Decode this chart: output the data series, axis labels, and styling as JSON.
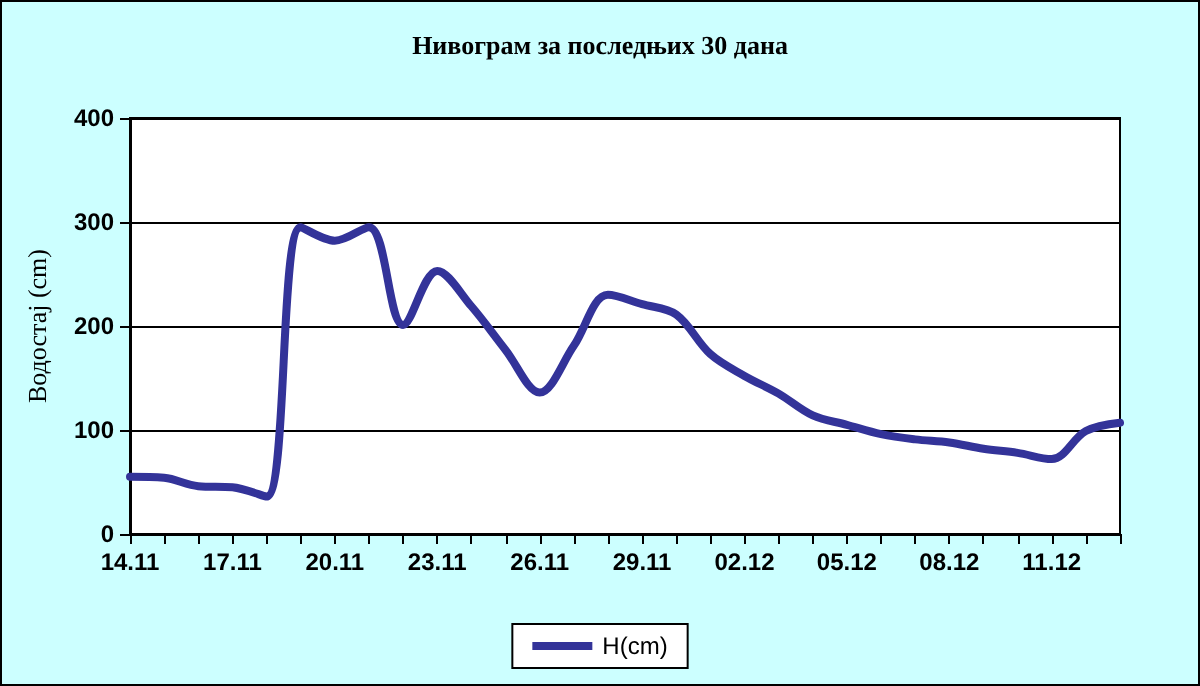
{
  "chart_data": {
    "type": "line",
    "title": "Нивограм за последњих 30 дана",
    "ylabel": "Водостај (cm)",
    "categories": [
      "14.11",
      null,
      null,
      "17.11",
      null,
      null,
      "20.11",
      null,
      null,
      "23.11",
      null,
      null,
      "26.11",
      null,
      null,
      "29.11",
      null,
      null,
      "02.12",
      null,
      null,
      "05.12",
      null,
      null,
      "08.12",
      null,
      null,
      "11.12",
      null,
      null
    ],
    "series": [
      {
        "name": "H(cm)",
        "color": "#333399",
        "values": [
          55,
          54,
          46,
          45,
          36,
          295,
          282,
          295,
          201,
          253,
          219,
          177,
          136,
          181,
          230,
          221,
          211,
          173,
          152,
          135,
          114,
          105,
          96,
          91,
          88,
          82,
          78,
          72,
          99,
          107
        ]
      }
    ],
    "ylim": [
      0,
      400
    ],
    "yticks": [
      0,
      100,
      200,
      300,
      400
    ],
    "grid": "y",
    "legend": "bottom",
    "marker": "none",
    "line_style": "solid"
  }
}
